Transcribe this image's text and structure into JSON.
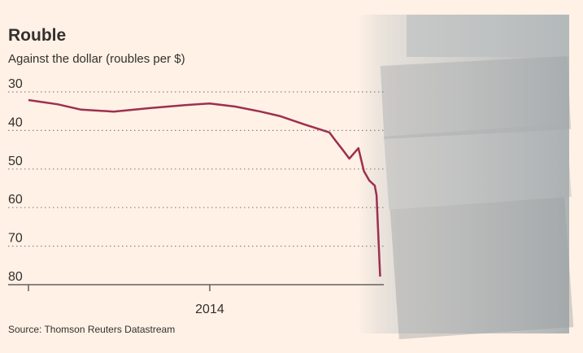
{
  "chart_data": {
    "type": "line",
    "title": "Rouble",
    "subtitle": "Against the dollar (roubles per $)",
    "source": "Source: Thomson Reuters Datastream",
    "x": [
      2013.0,
      2013.16,
      2013.29,
      2013.47,
      2013.67,
      2013.87,
      2014.0,
      2014.14,
      2014.28,
      2014.39,
      2014.52,
      2014.66,
      2014.69,
      2014.73,
      2014.77,
      2014.82,
      2014.85,
      2014.88,
      2014.91,
      2014.92,
      2014.94
    ],
    "series": [
      {
        "name": "Rouble",
        "color": "#9e2f50",
        "values": [
          32.1,
          33.2,
          34.6,
          35.1,
          34.2,
          33.4,
          33.0,
          33.8,
          35.1,
          36.3,
          38.4,
          40.5,
          42.4,
          44.8,
          47.3,
          44.6,
          50.5,
          53.0,
          54.3,
          56.8,
          77.9
        ]
      }
    ],
    "xlim": [
      2013,
      2014.96
    ],
    "xticks": [
      2014
    ],
    "minor_xticks": [
      2013
    ],
    "ylim": [
      30,
      80
    ],
    "yticks": [
      30,
      40,
      50,
      60,
      70,
      80
    ],
    "y_inverted": true,
    "grid": true
  }
}
